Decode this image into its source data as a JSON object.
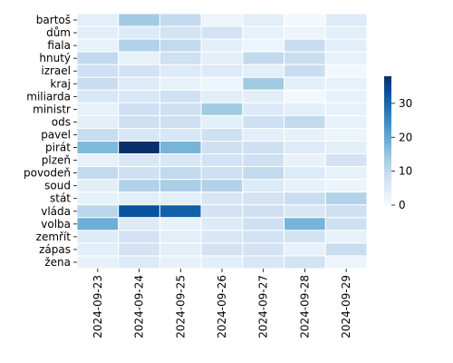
{
  "chart_data": {
    "type": "heatmap",
    "title": "",
    "xlabel": "",
    "ylabel": "",
    "x": [
      "2024-09-23",
      "2024-09-24",
      "2024-09-25",
      "2024-09-26",
      "2024-09-27",
      "2024-09-28",
      "2024-09-29"
    ],
    "y": [
      "bartoš",
      "dům",
      "fiala",
      "hnutý",
      "izrael",
      "kraj",
      "miliarda",
      "ministr",
      "ods",
      "pavel",
      "pirát",
      "plzeň",
      "povodeň",
      "soud",
      "stát",
      "vláda",
      "volba",
      "zemřít",
      "zápas",
      "žena"
    ],
    "values": [
      [
        4,
        14,
        10,
        2,
        4,
        1,
        5
      ],
      [
        4,
        5,
        7,
        7,
        3,
        2,
        4
      ],
      [
        3,
        12,
        10,
        4,
        2,
        9,
        4
      ],
      [
        10,
        3,
        8,
        4,
        10,
        9,
        3
      ],
      [
        8,
        7,
        5,
        5,
        4,
        9,
        1
      ],
      [
        9,
        5,
        3,
        2,
        14,
        4,
        3
      ],
      [
        6,
        6,
        8,
        4,
        4,
        1,
        3
      ],
      [
        3,
        8,
        8,
        14,
        5,
        4,
        3
      ],
      [
        4,
        8,
        8,
        4,
        8,
        10,
        3
      ],
      [
        9,
        6,
        6,
        8,
        4,
        3,
        2
      ],
      [
        17,
        38,
        18,
        8,
        8,
        5,
        4
      ],
      [
        3,
        6,
        6,
        7,
        8,
        3,
        7
      ],
      [
        10,
        8,
        10,
        8,
        10,
        5,
        3
      ],
      [
        4,
        12,
        13,
        12,
        5,
        3,
        2
      ],
      [
        3,
        4,
        4,
        6,
        7,
        9,
        12
      ],
      [
        11,
        33,
        31,
        7,
        8,
        6,
        8
      ],
      [
        19,
        5,
        3,
        5,
        8,
        18,
        8
      ],
      [
        5,
        7,
        4,
        6,
        7,
        7,
        3
      ],
      [
        4,
        7,
        4,
        7,
        7,
        3,
        9
      ],
      [
        3,
        5,
        3,
        4,
        6,
        7,
        2
      ]
    ],
    "vmin": 0,
    "vmax": 38,
    "colorbar_ticks": [
      0,
      10,
      20,
      30
    ],
    "cmap": "Blues",
    "grid": "white cell borders",
    "legend": "colorbar-right"
  }
}
